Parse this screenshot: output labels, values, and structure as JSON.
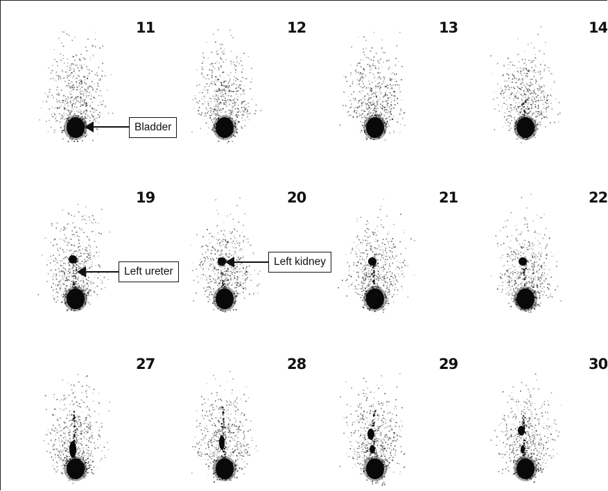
{
  "frame_numbers": {
    "r0": [
      "11",
      "12",
      "13",
      "14"
    ],
    "r1": [
      "19",
      "20",
      "21",
      "22"
    ],
    "r2": [
      "27",
      "28",
      "29",
      "30"
    ]
  },
  "annotations": {
    "bladder": "Bladder",
    "left_ureter": "Left ureter",
    "left_kidney": "Left kidney"
  },
  "colors": {
    "tracer": "#0a0a0a",
    "background": "#ffffff",
    "frame_border": "#222222"
  }
}
